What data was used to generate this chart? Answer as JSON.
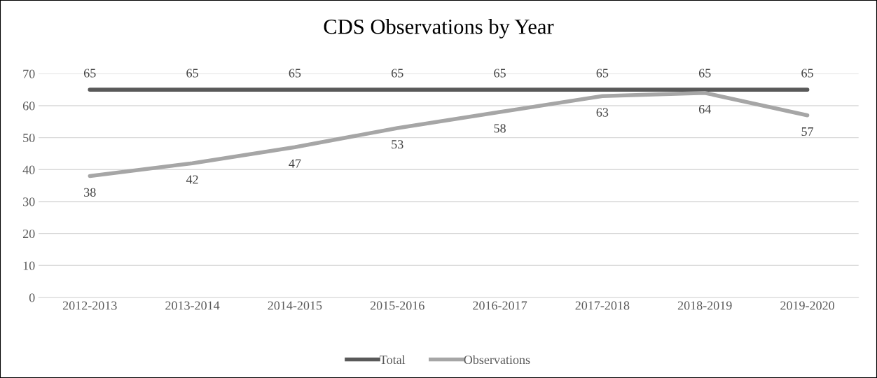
{
  "chart_data": {
    "type": "line",
    "title": "CDS Observations by Year",
    "categories": [
      "2012-2013",
      "2013-2014",
      "2014-2015",
      "2015-2016",
      "2016-2017",
      "2017-2018",
      "2018-2019",
      "2019-2020"
    ],
    "series": [
      {
        "name": "Total",
        "color": "#595959",
        "values": [
          65,
          65,
          65,
          65,
          65,
          65,
          65,
          65
        ]
      },
      {
        "name": "Observations",
        "color": "#a6a6a6",
        "values": [
          38,
          42,
          47,
          53,
          58,
          63,
          64,
          57
        ]
      }
    ],
    "ylim": [
      0,
      70
    ],
    "yticks": [
      0,
      10,
      20,
      30,
      40,
      50,
      60,
      70
    ],
    "grid": "y",
    "legend": "bottom",
    "data_labels": true,
    "marker": "none",
    "line_style": "solid"
  }
}
